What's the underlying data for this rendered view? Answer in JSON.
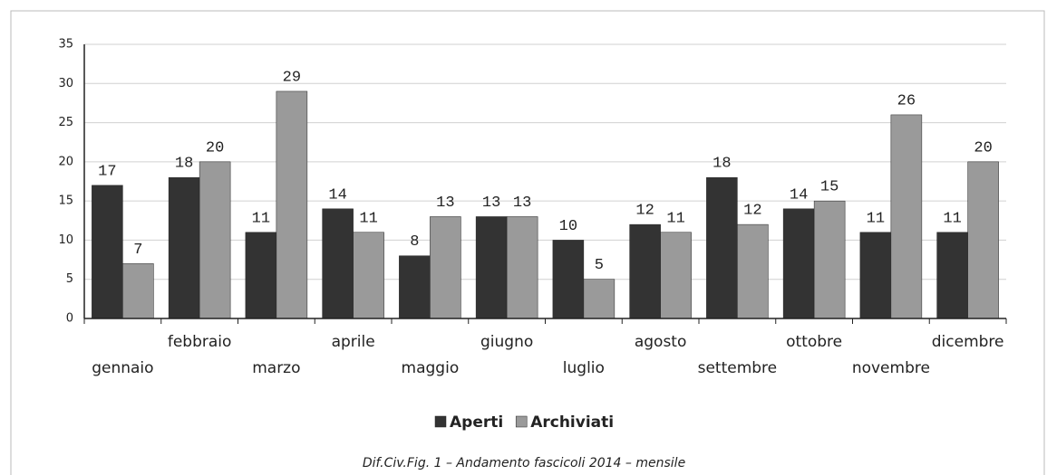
{
  "chart_data": {
    "type": "bar",
    "caption": "Dif.Civ.Fig. 1 – Andamento fascicoli 2014 – mensile",
    "categories": [
      "gennaio",
      "febbraio",
      "marzo",
      "aprile",
      "maggio",
      "giugno",
      "luglio",
      "agosto",
      "settembre",
      "ottobre",
      "novembre",
      "dicembre"
    ],
    "series": [
      {
        "name": "Aperti",
        "color": "#333333",
        "values": [
          17,
          18,
          11,
          14,
          8,
          13,
          10,
          12,
          18,
          14,
          11,
          11
        ]
      },
      {
        "name": "Archiviati",
        "color": "#9a9a9a",
        "values": [
          7,
          20,
          29,
          11,
          13,
          13,
          5,
          11,
          12,
          15,
          26,
          20
        ]
      }
    ],
    "ylim": [
      0,
      35
    ],
    "yticks": [
      0,
      5,
      10,
      15,
      20,
      25,
      30,
      35
    ],
    "grid": true,
    "legend": "bottom"
  }
}
